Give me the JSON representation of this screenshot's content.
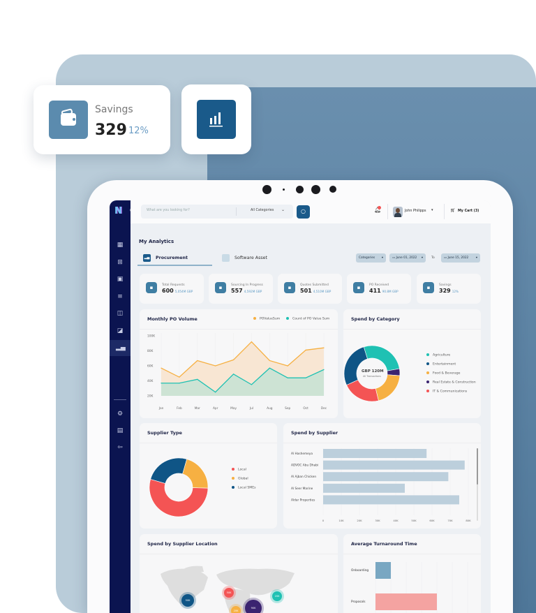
{
  "promo": {
    "savings_card": {
      "icon": "wallet-icon",
      "label": "Savings",
      "value": "329",
      "change": "12%"
    },
    "chart_card": {
      "icon": "bar-chart-icon"
    }
  },
  "colors": {
    "navy": "#0b1450",
    "accent": "#1a5a8a",
    "orange": "#f6b042",
    "teal": "#1fc1b3",
    "red": "#f45454",
    "purple": "#3b2470",
    "blue": "#0f5586"
  },
  "header": {
    "search_placeholder": "What are you looking for?",
    "category_select": "All Categories",
    "notification_icon": "bell-icon",
    "user_name": "John Philipps",
    "cart_label": "My Cart (3)"
  },
  "sidebar": {
    "items": [
      "dashboard-icon",
      "catalog-icon",
      "orders-icon",
      "list-icon",
      "layout-icon",
      "wallet-icon",
      "analytics-icon"
    ],
    "bottom_items": [
      "settings-icon",
      "document-icon",
      "logout-icon"
    ],
    "active": "analytics-icon"
  },
  "page": {
    "title": "My Analytics",
    "tabs": [
      {
        "label": "Procurement",
        "active": true
      },
      {
        "label": "Software Asset",
        "active": false
      }
    ],
    "filters": {
      "categories": "Categories",
      "date_from": "June 01, 2022",
      "to_label": "To",
      "date_to": "June 15, 2022"
    }
  },
  "kpis": [
    {
      "label": "Total Requests",
      "value": "600",
      "sub": "5,054M GBP",
      "icon": "document-icon"
    },
    {
      "label": "Sourcing In Progress",
      "value": "557",
      "sub": "4,592M GBP",
      "icon": "sync-icon"
    },
    {
      "label": "Quotes Submitted",
      "value": "501",
      "sub": "4,510M GBP",
      "icon": "quote-icon"
    },
    {
      "label": "PO Received",
      "value": "411",
      "sub": "90.8M GBP",
      "icon": "copy-icon"
    },
    {
      "label": "Savings",
      "value": "329",
      "sub": "12%",
      "icon": "wallet-icon"
    }
  ],
  "chart_data": [
    {
      "type": "area",
      "title": "Monthly PO Volume",
      "categories": [
        "Jan",
        "Feb",
        "Mar",
        "Apr",
        "May",
        "Jul",
        "Aug",
        "Sep",
        "Oct",
        "Dec"
      ],
      "yticks": [
        "20K",
        "40K",
        "60K",
        "80K",
        "100K"
      ],
      "ylim": [
        20000,
        100000
      ],
      "legend": "top-right",
      "series": [
        {
          "name": "POValueSum",
          "color": "#f6b042",
          "fill": "#f8e6d3",
          "values": [
            57000,
            45000,
            67000,
            60000,
            68000,
            92000,
            67000,
            60000,
            81000,
            84000
          ]
        },
        {
          "name": "Count of PO Value Sum",
          "color": "#1fc1b3",
          "fill": "#cde3d4",
          "values": [
            37000,
            37000,
            42000,
            25000,
            49000,
            35000,
            57000,
            44000,
            44000,
            55000
          ]
        }
      ]
    },
    {
      "type": "pie",
      "title": "Spend by Category",
      "center_value": "GBP 120M",
      "center_label": "All Transactions",
      "legend": "right",
      "slices": [
        {
          "name": "Agriculture",
          "value": 27,
          "color": "#1fc1b3"
        },
        {
          "name": "Real Estate & Construction",
          "value": 4,
          "color": "#3b2470"
        },
        {
          "name": "Food & Beverage",
          "value": 20,
          "color": "#f6b042"
        },
        {
          "name": "IT & Communications",
          "value": 22,
          "color": "#f45454"
        },
        {
          "name": "Entertainment",
          "value": 27,
          "color": "#0f5586"
        }
      ],
      "legend_order": [
        "Agriculture",
        "Entertainment",
        "Food & Beverage",
        "Real Estate & Construction",
        "IT & Communications"
      ]
    },
    {
      "type": "pie",
      "title": "Supplier Type",
      "legend": "right",
      "slices": [
        {
          "name": "Global",
          "value": 21,
          "color": "#f6b042"
        },
        {
          "name": "Local",
          "value": 54,
          "color": "#f45454"
        },
        {
          "name": "Local SMEs",
          "value": 25,
          "color": "#0f5586"
        }
      ],
      "legend_order": [
        "Local",
        "Global",
        "Local SMEs"
      ]
    },
    {
      "type": "bar",
      "title": "Spend by Supplier",
      "orientation": "horizontal",
      "categories": [
        "Al Hashemeya",
        "ADVOC Abu Dhabi",
        "Al Ajban Chicken",
        "Al Seer Marine",
        "Aldar Properties"
      ],
      "values": [
        57000,
        78000,
        69000,
        45000,
        75000
      ],
      "xticks": [
        "0",
        "10K",
        "20K",
        "30K",
        "40K",
        "50K",
        "60K",
        "70K",
        "80K"
      ],
      "xlim": [
        0,
        80000
      ],
      "color": "#bccfdc"
    },
    {
      "type": "scatter",
      "title": "Spend by Supplier Location",
      "bubbles": [
        {
          "label": "50K",
          "region": "North America",
          "color": "#0f5586"
        },
        {
          "label": "50K",
          "region": "Europe",
          "color": "#f45454"
        },
        {
          "label": "20K",
          "region": "East Asia",
          "color": "#1fc1b3"
        },
        {
          "label": "20K",
          "region": "Africa",
          "color": "#f6b042"
        },
        {
          "label": "90K",
          "region": "Middle East",
          "color": "#3b2470"
        }
      ]
    },
    {
      "type": "bar",
      "title": "Average Turnaround Time",
      "orientation": "horizontal",
      "categories": [
        "Onboarding",
        "Proposals"
      ],
      "values": [
        1,
        4
      ],
      "colors": [
        "#79a7c2",
        "#f4a3a1"
      ]
    }
  ]
}
